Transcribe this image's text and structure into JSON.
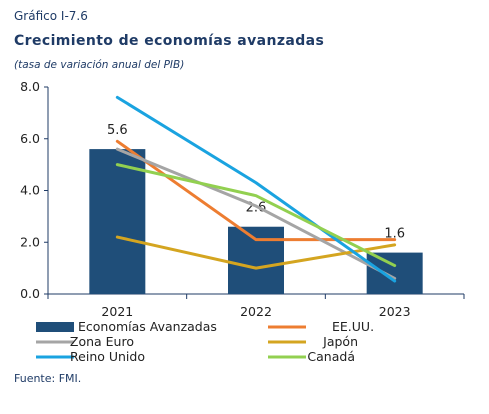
{
  "header": {
    "label": "Gráfico I-7.6",
    "title": "Crecimiento de economías avanzadas",
    "subtitle": "(tasa de variación anual del PIB)"
  },
  "footer": {
    "source": "Fuente: FMI."
  },
  "chart_data": {
    "type": "bar",
    "categories": [
      "2021",
      "2022",
      "2023"
    ],
    "ylim": [
      0,
      8
    ],
    "yticks": [
      "0.0",
      "2.0",
      "4.0",
      "6.0",
      "8.0"
    ],
    "grid": false,
    "legend_position": "bottom",
    "bar_series": {
      "name": "Economías Avanzadas",
      "values": [
        5.6,
        2.6,
        1.6
      ],
      "labels": [
        "5.6",
        "2.6",
        "1.6"
      ],
      "color": "#1f4e79"
    },
    "line_series": [
      {
        "name": "EE.UU.",
        "values": [
          5.9,
          2.1,
          2.1
        ],
        "color": "#ed7d31"
      },
      {
        "name": "Zona Euro",
        "values": [
          5.6,
          3.4,
          0.6
        ],
        "color": "#a5a5a5"
      },
      {
        "name": "Japón",
        "values": [
          2.2,
          1.0,
          1.9
        ],
        "color": "#d4a520"
      },
      {
        "name": "Reino Unido",
        "values": [
          7.6,
          4.3,
          0.5
        ],
        "color": "#1aa3e0"
      },
      {
        "name": "Canadá",
        "values": [
          5.0,
          3.8,
          1.1
        ],
        "color": "#92d050"
      }
    ],
    "legend_order": [
      "Economías Avanzadas",
      "EE.UU.",
      "Zona Euro",
      "Japón",
      "Reino Unido",
      "Canadá"
    ]
  }
}
